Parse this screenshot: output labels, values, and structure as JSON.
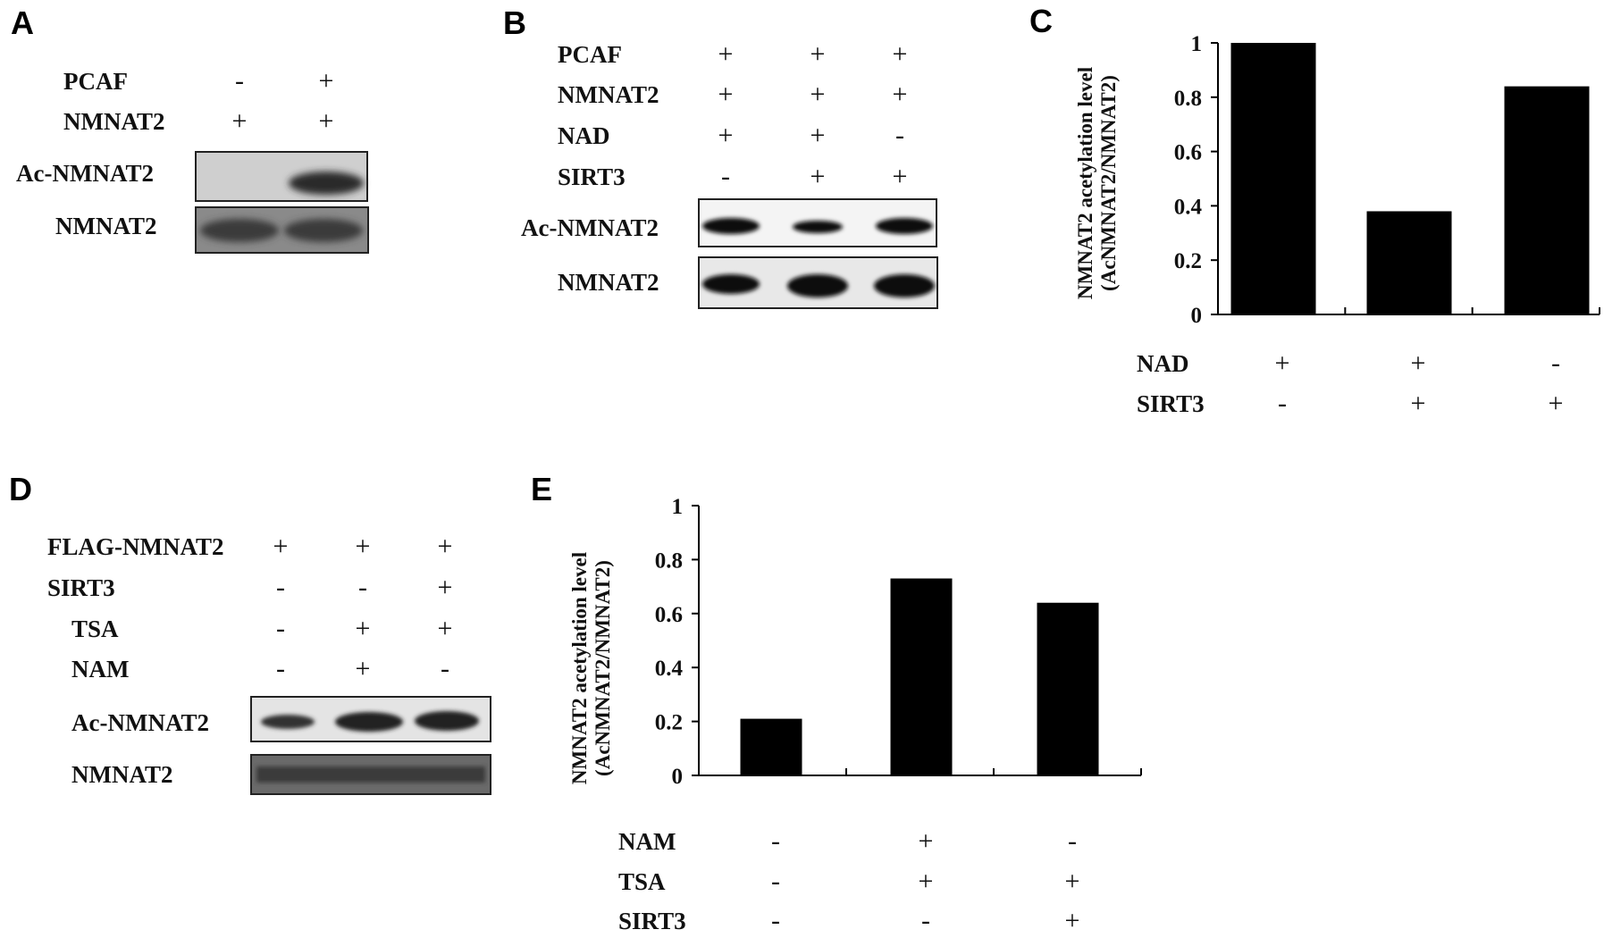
{
  "panels": {
    "a": "A",
    "b": "B",
    "c": "C",
    "d": "D",
    "e": "E"
  },
  "panel_a": {
    "rows": [
      {
        "label": "PCAF",
        "signs": [
          "-",
          "+"
        ]
      },
      {
        "label": "NMNAT2",
        "signs": [
          "+",
          "+"
        ]
      }
    ],
    "blots": [
      "Ac-NMNAT2",
      "NMNAT2"
    ]
  },
  "panel_b": {
    "rows": [
      {
        "label": "PCAF",
        "signs": [
          "+",
          "+",
          "+"
        ]
      },
      {
        "label": "NMNAT2",
        "signs": [
          "+",
          "+",
          "+"
        ]
      },
      {
        "label": "NAD",
        "signs": [
          "+",
          "+",
          "-"
        ]
      },
      {
        "label": "SIRT3",
        "signs": [
          "-",
          "+",
          "+"
        ]
      }
    ],
    "blots": [
      "Ac-NMNAT2",
      "NMNAT2"
    ]
  },
  "panel_d": {
    "rows": [
      {
        "label": "FLAG-NMNAT2",
        "signs": [
          "+",
          "+",
          "+"
        ]
      },
      {
        "label": "SIRT3",
        "signs": [
          "-",
          "-",
          "+"
        ]
      },
      {
        "label": "TSA",
        "signs": [
          "-",
          "+",
          "+"
        ]
      },
      {
        "label": "NAM",
        "signs": [
          "-",
          "+",
          "-"
        ]
      }
    ],
    "blots": [
      "Ac-NMNAT2",
      "NMNAT2"
    ]
  },
  "chart_data": [
    {
      "type": "bar",
      "panel": "C",
      "ylabel_line1": "NMNAT2 acetylation level",
      "ylabel_line2": "(AcNMNAT2/NMNAT2)",
      "ylim": [
        0,
        1
      ],
      "yticks": [
        "0",
        "0.2",
        "0.4",
        "0.6",
        "0.8",
        "1"
      ],
      "values": [
        1.0,
        0.38,
        0.84
      ],
      "conditions": [
        {
          "label": "NAD",
          "signs": [
            "+",
            "+",
            "-"
          ]
        },
        {
          "label": "SIRT3",
          "signs": [
            "-",
            "+",
            "+"
          ]
        }
      ],
      "bar_color": "#000000"
    },
    {
      "type": "bar",
      "panel": "E",
      "ylabel_line1": "NMNAT2 acetylation level",
      "ylabel_line2": "(AcNMNAT2/NMNAT2)",
      "ylim": [
        0,
        1
      ],
      "yticks": [
        "0",
        "0.2",
        "0.4",
        "0.6",
        "0.8",
        "1"
      ],
      "values": [
        0.21,
        0.73,
        0.64
      ],
      "conditions": [
        {
          "label": "NAM",
          "signs": [
            "-",
            "+",
            "-"
          ]
        },
        {
          "label": "TSA",
          "signs": [
            "-",
            "+",
            "+"
          ]
        },
        {
          "label": "SIRT3",
          "signs": [
            "-",
            "-",
            "+"
          ]
        }
      ],
      "bar_color": "#000000"
    }
  ]
}
